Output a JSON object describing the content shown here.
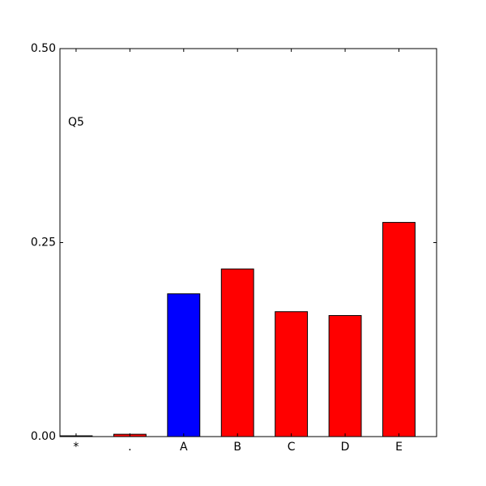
{
  "chart_data": {
    "type": "bar",
    "annotation": "Q5",
    "categories": [
      "*",
      ".",
      "A",
      "B",
      "C",
      "D",
      "E"
    ],
    "values": [
      0.001,
      0.003,
      0.184,
      0.216,
      0.161,
      0.156,
      0.276
    ],
    "colors": [
      "#ff0000",
      "#ff0000",
      "#0000ff",
      "#ff0000",
      "#ff0000",
      "#ff0000",
      "#ff0000"
    ],
    "ylim": [
      0,
      0.5
    ],
    "yticks": [
      {
        "value": 0,
        "label": "0.00"
      },
      0.25,
      {
        "value": 0.5,
        "label": "0.50"
      }
    ]
  }
}
